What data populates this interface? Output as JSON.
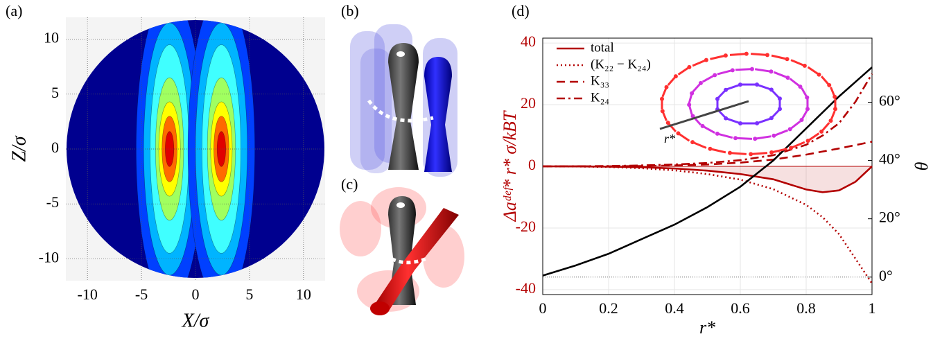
{
  "chart_data": [
    {
      "type": "contour",
      "panel": "(a)",
      "xlabel": "X/σ",
      "ylabel": "Z/σ",
      "xlim": [
        -12,
        12
      ],
      "ylim": [
        -12,
        12
      ],
      "xticks": [
        -10,
        -5,
        0,
        5,
        10
      ],
      "yticks": [
        -10,
        -5,
        0,
        5,
        10
      ],
      "grid": true
    },
    {
      "type": "illustration",
      "panel": "(b)",
      "color": "#1010c8"
    },
    {
      "type": "illustration",
      "panel": "(c)",
      "color": "#e01010"
    },
    {
      "type": "line",
      "panel": "(d)",
      "xlabel": "r*",
      "ylabel": "Δaᵈᵉᶠ* r* σ/kBT",
      "y2label": "θ",
      "inset_label": "r*",
      "x": [
        0,
        0.1,
        0.2,
        0.3,
        0.4,
        0.5,
        0.6,
        0.7,
        0.8,
        0.85,
        0.9,
        0.95,
        1
      ],
      "xlim": [
        0,
        1
      ],
      "xticks": [
        0,
        0.2,
        0.4,
        0.6,
        0.8,
        1
      ],
      "ylim": [
        -41.6,
        41.6
      ],
      "yticks": [
        -40,
        -20,
        0,
        20,
        40
      ],
      "y2lim": [
        -6,
        82
      ],
      "y2ticks": [
        {
          "value": 0,
          "label": "0°"
        },
        {
          "value": 20,
          "label": "20°"
        },
        {
          "value": 40,
          "label": "40°"
        },
        {
          "value": 60,
          "label": "60°"
        }
      ],
      "grid": true,
      "legend": "upper left",
      "series": [
        {
          "name": "total",
          "color": "#b30000",
          "dash": "solid",
          "values": [
            0,
            -0.02,
            -0.1,
            -0.3,
            -0.7,
            -1.4,
            -2.5,
            -4.2,
            -7.5,
            -8.4,
            -7.8,
            -5,
            0
          ]
        },
        {
          "name": "(K₂₂ − K₂₄)",
          "color": "#b30000",
          "dash": "dotted",
          "values": [
            0,
            -0.05,
            -0.2,
            -0.6,
            -1.3,
            -2.5,
            -4.3,
            -7.4,
            -12.5,
            -16.5,
            -22,
            -30,
            -38
          ]
        },
        {
          "name": "K₃₃",
          "color": "#b30000",
          "dash": "dashed",
          "values": [
            0,
            0,
            0.02,
            0.1,
            0.3,
            0.6,
            1.2,
            2.2,
            3.8,
            4.8,
            5.8,
            6.9,
            8
          ]
        },
        {
          "name": "K₂₄",
          "color": "#b30000",
          "dash": "dashdot",
          "values": [
            0,
            0.03,
            0.1,
            0.3,
            0.6,
            1.1,
            2,
            3.6,
            7,
            10,
            14,
            21,
            30
          ]
        },
        {
          "color": "#000000",
          "dash": "solid",
          "axis": "y2",
          "values": [
            0.5,
            4,
            8,
            13,
            18,
            24,
            31,
            40,
            51,
            56.5,
            62,
            67,
            72
          ]
        }
      ]
    }
  ]
}
